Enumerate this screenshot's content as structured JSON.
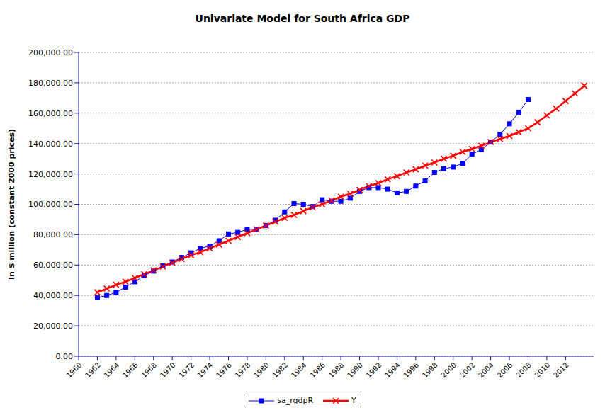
{
  "chart_data": {
    "type": "line",
    "title": "Univariate Model for South Africa GDP",
    "ylabel": "In $ million (constant 2000 prices)",
    "x": [
      1962,
      1963,
      1964,
      1965,
      1966,
      1967,
      1968,
      1969,
      1970,
      1971,
      1972,
      1973,
      1974,
      1975,
      1976,
      1977,
      1978,
      1979,
      1980,
      1981,
      1982,
      1983,
      1984,
      1985,
      1986,
      1987,
      1988,
      1989,
      1990,
      1991,
      1992,
      1993,
      1994,
      1995,
      1996,
      1997,
      1998,
      1999,
      2000,
      2001,
      2002,
      2003,
      2004,
      2005,
      2006,
      2007,
      2008,
      2009,
      2010,
      2011,
      2012,
      2013,
      2014
    ],
    "series": [
      {
        "name": "sa_rgdpR",
        "color": "#0000ff",
        "marker": "square",
        "values": [
          38500,
          40000,
          42000,
          45500,
          49000,
          53000,
          56000,
          59500,
          62000,
          65000,
          68000,
          71000,
          72500,
          76000,
          80500,
          81500,
          83500,
          83500,
          86000,
          89500,
          95000,
          100500,
          100000,
          98500,
          103000,
          102000,
          102000,
          104000,
          108500,
          111000,
          111000,
          110000,
          107500,
          108500,
          112000,
          115500,
          121000,
          123500,
          124500,
          127000,
          133000,
          136000,
          141000,
          146000,
          153000,
          160500,
          169000,
          null,
          null,
          null,
          null,
          null,
          null
        ]
      },
      {
        "name": "Y",
        "color": "#ff0000",
        "marker": "x",
        "values": [
          42000,
          44500,
          47000,
          49000,
          51500,
          54000,
          56500,
          59000,
          61500,
          64000,
          66500,
          68500,
          71000,
          73500,
          76000,
          78500,
          81000,
          83500,
          86000,
          88500,
          91000,
          93000,
          95500,
          98000,
          100000,
          102500,
          105000,
          107000,
          109500,
          112000,
          114000,
          116500,
          118500,
          121000,
          123000,
          125500,
          127500,
          130000,
          132000,
          134500,
          136500,
          138500,
          141000,
          143000,
          145000,
          147500,
          150000,
          154000,
          158500,
          163000,
          168000,
          173000,
          178000
        ]
      }
    ],
    "xlim": [
      1960,
      2015
    ],
    "xticks": [
      1960,
      1962,
      1964,
      1966,
      1968,
      1970,
      1972,
      1974,
      1976,
      1978,
      1980,
      1982,
      1984,
      1986,
      1988,
      1990,
      1992,
      1994,
      1996,
      1998,
      2000,
      2002,
      2004,
      2006,
      2008,
      2010,
      2012
    ],
    "ylim": [
      0,
      200000
    ],
    "yticks": [
      {
        "value": 0,
        "label": "0.00"
      },
      {
        "value": 20000,
        "label": "20,000.00"
      },
      {
        "value": 40000,
        "label": "40,000.00"
      },
      {
        "value": 60000,
        "label": "60,000.00"
      },
      {
        "value": 80000,
        "label": "80,000.00"
      },
      {
        "value": 100000,
        "label": "100,000.00"
      },
      {
        "value": 120000,
        "label": "120,000.00"
      },
      {
        "value": 140000,
        "label": "140,000.00"
      },
      {
        "value": 160000,
        "label": "160,000.00"
      },
      {
        "value": 180000,
        "label": "180,000.00"
      },
      {
        "value": 200000,
        "label": "200,000.00"
      }
    ],
    "grid": true,
    "legend": "bottom"
  }
}
